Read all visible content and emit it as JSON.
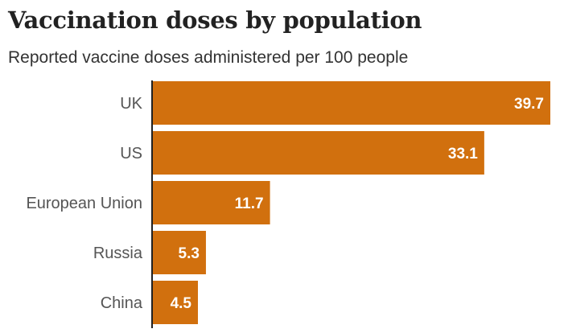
{
  "chart_data": {
    "type": "bar",
    "orientation": "horizontal",
    "title": "Vaccination doses by population",
    "subtitle": "Reported vaccine doses administered per 100 people",
    "categories": [
      "UK",
      "US",
      "European Union",
      "Russia",
      "China"
    ],
    "values": [
      39.7,
      33.1,
      11.7,
      5.3,
      4.5
    ],
    "value_labels": [
      "39.7",
      "33.1",
      "11.7",
      "5.3",
      "4.5"
    ],
    "xlabel": "",
    "ylabel": "",
    "xlim": [
      0,
      39.7
    ],
    "grid": false,
    "bar_color": "#d1700e"
  }
}
